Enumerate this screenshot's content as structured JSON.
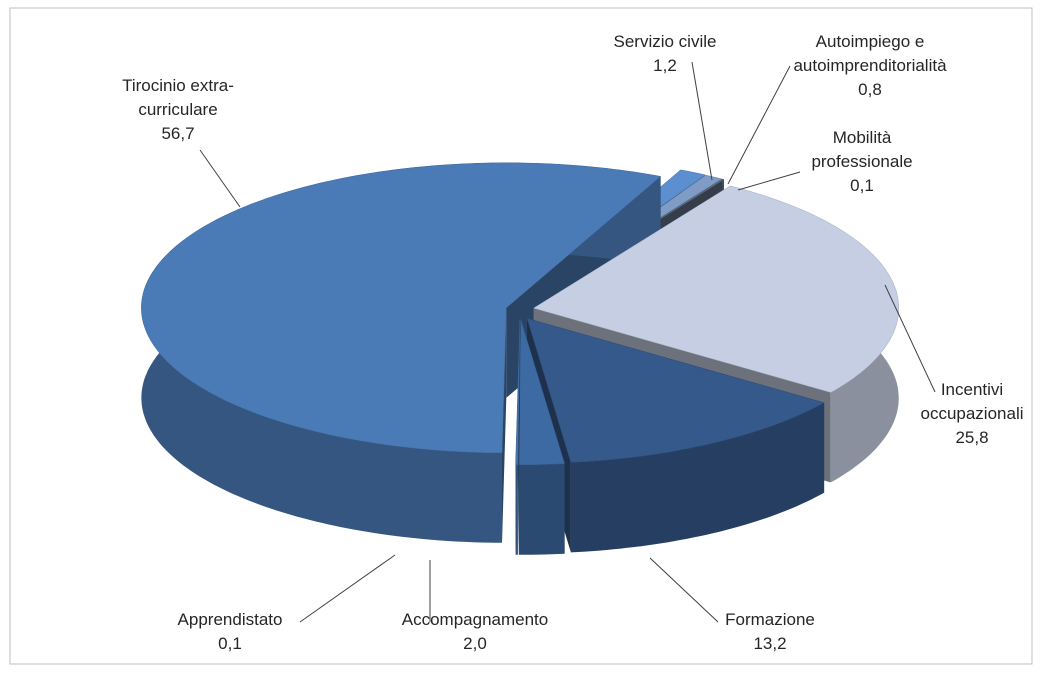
{
  "chart_data": {
    "type": "pie3d",
    "categories": [
      "Servizio civile",
      "Autoimpiego e autoimprenditorialità",
      "Mobilità professionale",
      "Incentivi occupazionali",
      "Formazione",
      "Accompagnamento",
      "Apprendistato",
      "Tirocinio extra-curriculare"
    ],
    "values": [
      1.2,
      0.8,
      0.1,
      25.8,
      13.2,
      2.0,
      0.1,
      56.7
    ],
    "value_labels": [
      "1,2",
      "0,8",
      "0,1",
      "25,8",
      "13,2",
      "2,0",
      "0,1",
      "56,7"
    ],
    "colors": [
      "#5b8fd0",
      "#7f9cc7",
      "#5f6f85",
      "#c5cee2",
      "#35598a",
      "#3d6aa3",
      "#4675ad",
      "#4a7bb7"
    ]
  }
}
